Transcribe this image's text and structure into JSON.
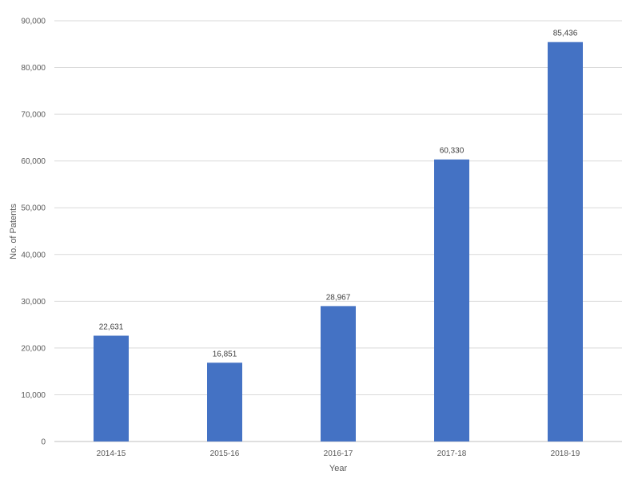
{
  "chart_data": {
    "type": "bar",
    "title": "",
    "xlabel": "Year",
    "ylabel": "No. of Patents",
    "categories": [
      "2014-15",
      "2015-16",
      "2016-17",
      "2017-18",
      "2018-19"
    ],
    "series": [
      {
        "values": [
          22631,
          16851,
          28967,
          60330,
          85436
        ]
      }
    ],
    "data_labels": [
      "22,631",
      "16,851",
      "28,967",
      "60,330",
      "85,436"
    ],
    "ylim": [
      0,
      90000
    ],
    "yticks": [
      0,
      10000,
      20000,
      30000,
      40000,
      50000,
      60000,
      70000,
      80000,
      90000
    ],
    "ytick_labels": [
      "0",
      "10,000",
      "20,000",
      "30,000",
      "40,000",
      "50,000",
      "60,000",
      "70,000",
      "80,000",
      "90,000"
    ],
    "grid": true,
    "legend": "none",
    "colors": {
      "bar": "#4472c4"
    }
  }
}
